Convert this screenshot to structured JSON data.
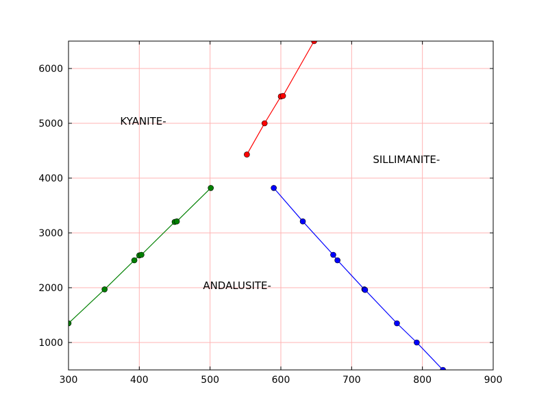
{
  "chart_data": {
    "type": "line",
    "title": "",
    "xlabel": "",
    "ylabel": "",
    "xlim": [
      300,
      900
    ],
    "ylim": [
      500,
      6500
    ],
    "grid": true,
    "grid_color": "#ffb3b3",
    "x_ticks": [
      300,
      400,
      500,
      600,
      700,
      800,
      900
    ],
    "y_ticks": [
      1000,
      2000,
      3000,
      4000,
      5000,
      6000
    ],
    "series": [
      {
        "color": "#ff0000",
        "points": [
          [
            552,
            4430
          ],
          [
            577,
            5000
          ],
          [
            600,
            5490
          ],
          [
            603,
            5500
          ],
          [
            647,
            6500
          ]
        ]
      },
      {
        "color": "#008000",
        "points": [
          [
            300,
            1350
          ],
          [
            351,
            1970
          ],
          [
            393,
            2500
          ],
          [
            400,
            2590
          ],
          [
            403,
            2600
          ],
          [
            450,
            3200
          ],
          [
            453,
            3210
          ],
          [
            501,
            3820
          ]
        ]
      },
      {
        "color": "#0000ff",
        "points": [
          [
            590,
            3820
          ],
          [
            631,
            3210
          ],
          [
            674,
            2600
          ],
          [
            680,
            2500
          ],
          [
            718,
            1970
          ],
          [
            719,
            1960
          ],
          [
            764,
            1350
          ],
          [
            792,
            1000
          ],
          [
            829,
            500
          ]
        ]
      }
    ],
    "annotations": [
      {
        "text": "KYANITE-",
        "x": 373,
        "y": 5000
      },
      {
        "text": "SILLIMANITE-",
        "x": 730,
        "y": 4300
      },
      {
        "text": "ANDALUSITE-",
        "x": 490,
        "y": 2000
      }
    ]
  }
}
